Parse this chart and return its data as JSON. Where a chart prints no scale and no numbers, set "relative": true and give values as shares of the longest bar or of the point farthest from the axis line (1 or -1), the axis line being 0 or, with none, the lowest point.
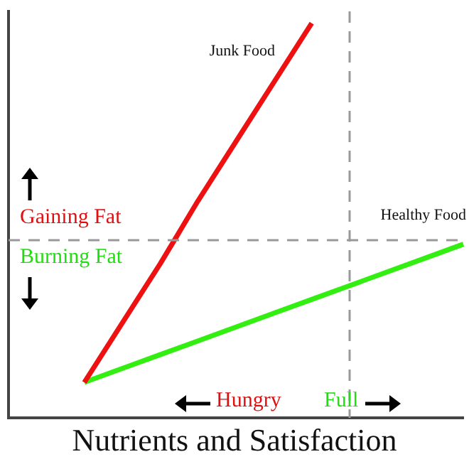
{
  "chart_data": {
    "type": "line",
    "title": "Nutrients and Satisfaction",
    "relative": true,
    "legend": false,
    "grid": false,
    "marker": "none",
    "line_style": "solid",
    "categories": [
      null,
      null,
      null,
      null,
      null,
      null,
      null,
      null,
      null,
      null,
      null,
      null,
      null
    ],
    "series": [
      {
        "name": "Junk Food",
        "color": "#ee1111",
        "values": [
          null,
          null,
          0.09,
          0.24,
          0.39,
          0.55,
          0.7,
          0.85,
          1,
          null,
          null,
          null,
          null
        ]
      },
      {
        "name": "Healthy Food",
        "color": "#33ee11",
        "values": [
          null,
          null,
          0.09,
          0.125,
          0.16,
          0.195,
          0.23,
          0.265,
          0.3,
          0.335,
          0.37,
          0.405,
          0.44
        ]
      }
    ],
    "ref_lines": [
      {
        "axis": "y",
        "value": 0.45,
        "color": "#999999",
        "line_style": "dashed"
      }
    ],
    "annotations": [
      "Gaining Fat",
      "Burning Fat",
      "Hungry",
      "Full"
    ]
  }
}
